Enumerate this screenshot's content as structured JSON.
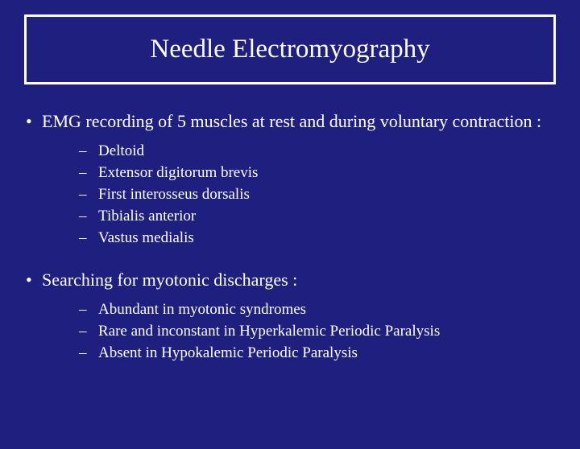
{
  "colors": {
    "background": "#1f1f7f",
    "text": "#ffffff",
    "border": "#ffffff"
  },
  "typography": {
    "family": "Times New Roman",
    "title_fontsize": 33,
    "bullet_fontsize": 22,
    "sub_fontsize": 19
  },
  "title": "Needle Electromyography",
  "sections": [
    {
      "bullet": "EMG recording of 5 muscles at rest and during voluntary contraction :",
      "subs": [
        "Deltoid",
        "Extensor digitorum brevis",
        "First interosseus dorsalis",
        "Tibialis anterior",
        "Vastus medialis"
      ]
    },
    {
      "bullet": "Searching for myotonic discharges :",
      "subs": [
        "Abundant in myotonic syndromes",
        "Rare and inconstant in Hyperkalemic Periodic Paralysis",
        "Absent in Hypokalemic Periodic Paralysis"
      ]
    }
  ]
}
